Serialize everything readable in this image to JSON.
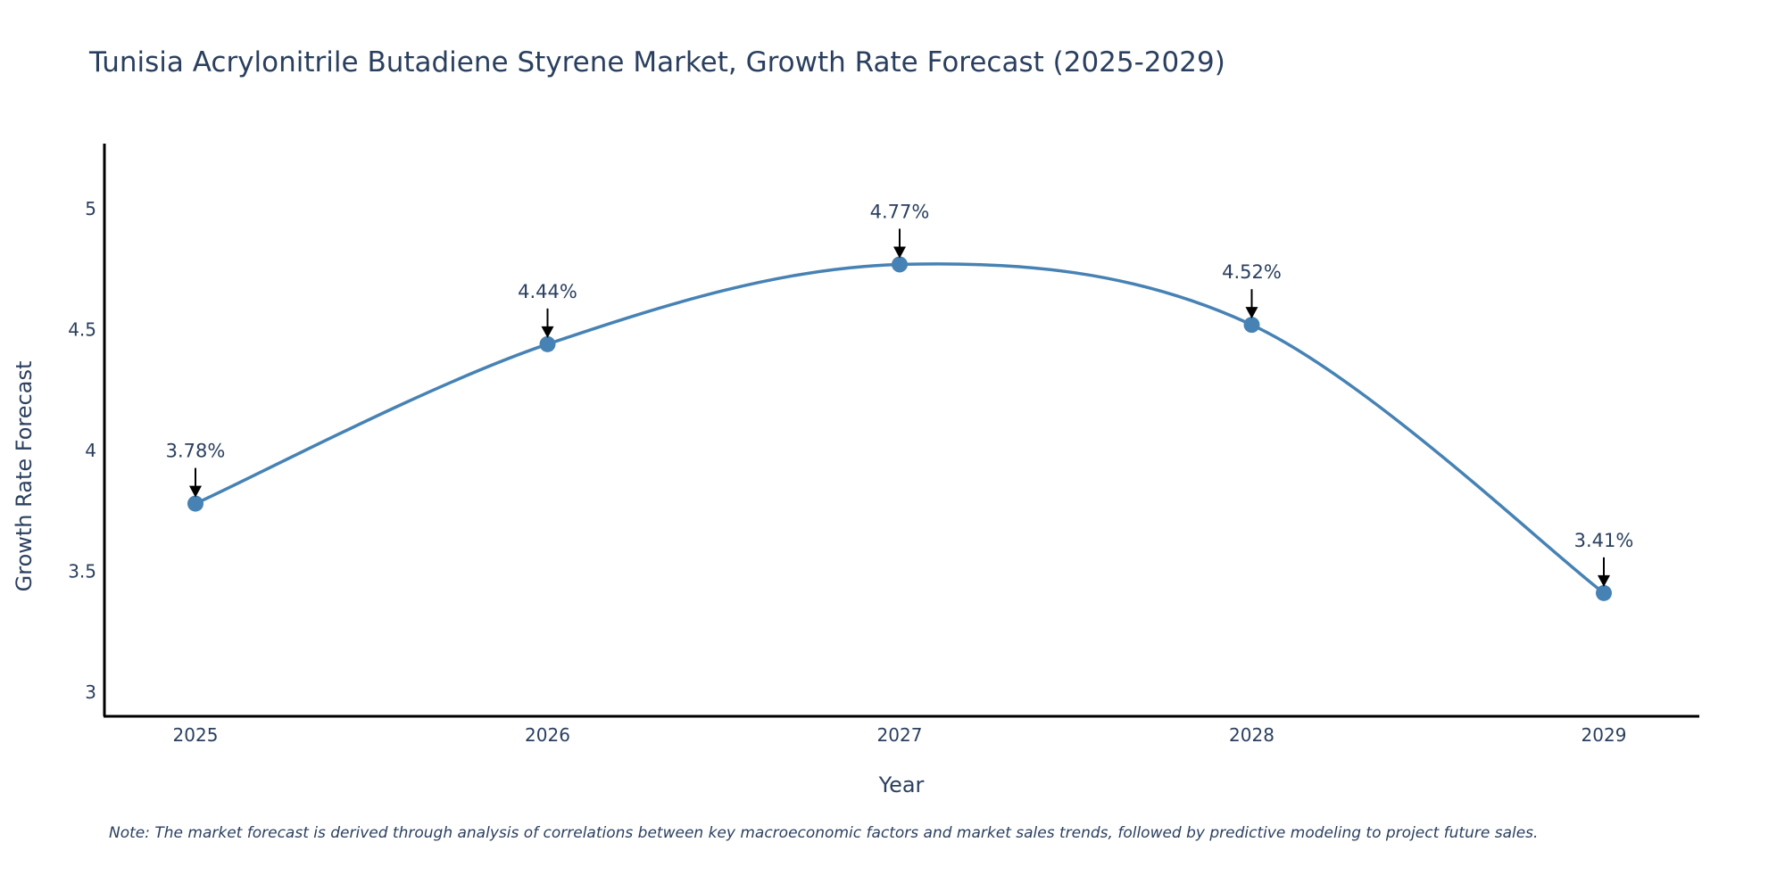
{
  "chart_data": {
    "type": "line",
    "title": "Tunisia Acrylonitrile Butadiene Styrene Market, Growth Rate Forecast (2025-2029)",
    "xlabel": "Year",
    "ylabel": "Growth Rate Forecast",
    "categories": [
      "2025",
      "2026",
      "2027",
      "2028",
      "2029"
    ],
    "series": [
      {
        "name": "Growth Rate Forecast",
        "values": [
          3.78,
          4.44,
          4.77,
          4.52,
          3.41
        ],
        "color": "#4682b4"
      }
    ],
    "data_labels": [
      "3.78%",
      "4.44%",
      "4.77%",
      "4.52%",
      "3.41%"
    ],
    "y_ticks": [
      3,
      3.5,
      4,
      4.5,
      5
    ],
    "y_tick_labels": [
      "3",
      "3.5",
      "4",
      "4.5",
      "5"
    ],
    "ylim": [
      2.9,
      5.27
    ],
    "grid": false,
    "line_shape": "spline",
    "note": "Note: The market forecast is derived through analysis of correlations between key macroeconomic factors and market sales trends, followed by predictive modeling to project future sales."
  },
  "colors": {
    "line": "#4682b4",
    "text": "#2a3f5f",
    "axis": "#000000",
    "arrow": "#000000"
  }
}
